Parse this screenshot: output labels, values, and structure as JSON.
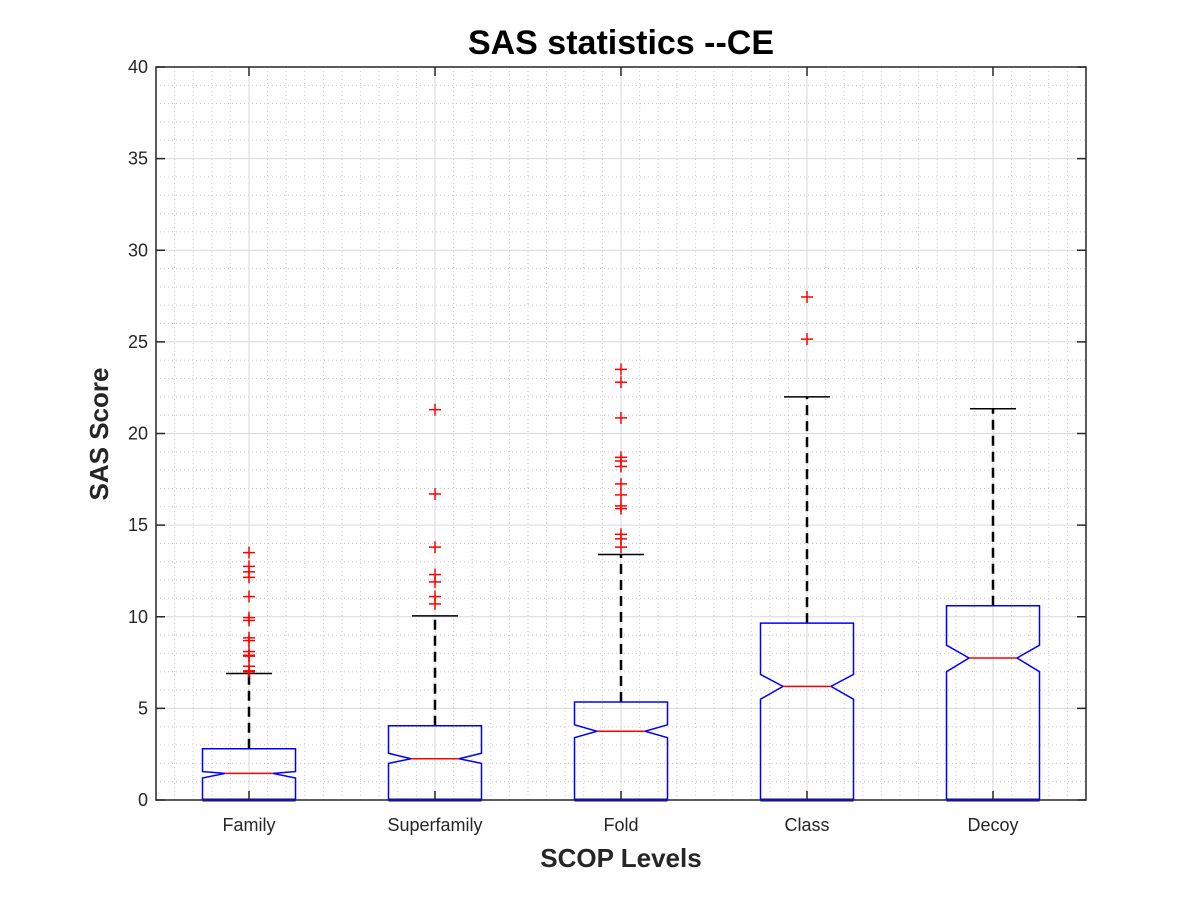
{
  "chart_data": {
    "type": "boxplot",
    "title": "SAS statistics --CE",
    "xlabel": "SCOP Levels",
    "ylabel": "SAS Score",
    "ylim": [
      0,
      40
    ],
    "yticks": [
      "0",
      "5",
      "10",
      "15",
      "20",
      "25",
      "30",
      "35",
      "40"
    ],
    "ytick_values": [
      0,
      5,
      10,
      15,
      20,
      25,
      30,
      35,
      40
    ],
    "grid": true,
    "minor_grid": true,
    "notched": true,
    "categories": [
      "Family",
      "Superfamily",
      "Fold",
      "Class",
      "Decoy"
    ],
    "series": [
      {
        "name": "Family",
        "min": 0,
        "q1": 0,
        "median": 1.45,
        "q3": 2.8,
        "notch_low": 1.2,
        "notch_high": 1.55,
        "whisker_high": 6.9,
        "outliers": [
          13.5,
          12.75,
          12.45,
          12.15,
          11.1,
          9.95,
          9.8,
          8.85,
          8.7,
          8.1,
          7.9,
          7.85,
          7.3,
          7.05,
          7.0
        ]
      },
      {
        "name": "Superfamily",
        "min": 0,
        "q1": 0,
        "median": 2.25,
        "q3": 4.05,
        "notch_low": 2.0,
        "notch_high": 2.55,
        "whisker_high": 10.05,
        "outliers": [
          21.3,
          16.7,
          13.8,
          12.3,
          11.9,
          11.1,
          10.7
        ]
      },
      {
        "name": "Fold",
        "min": 0,
        "q1": 0,
        "median": 3.75,
        "q3": 5.35,
        "notch_low": 3.4,
        "notch_high": 4.1,
        "whisker_high": 13.4,
        "outliers": [
          23.5,
          22.8,
          20.85,
          18.7,
          18.5,
          18.2,
          17.25,
          16.65,
          16.05,
          15.9,
          14.5,
          14.25,
          13.8
        ]
      },
      {
        "name": "Class",
        "min": 0,
        "q1": 0,
        "median": 6.2,
        "q3": 9.65,
        "notch_low": 5.5,
        "notch_high": 6.85,
        "whisker_high": 22.0,
        "outliers": [
          27.45,
          25.15
        ]
      },
      {
        "name": "Decoy",
        "min": 0,
        "q1": 0,
        "median": 7.75,
        "q3": 10.6,
        "notch_low": 7.0,
        "notch_high": 8.45,
        "whisker_high": 21.35,
        "outliers": []
      }
    ],
    "colors": {
      "box": "#0000ff",
      "median": "#ff0000",
      "whisker": "#000000",
      "outlier": "#ff0000",
      "grid": "#d9d9d9"
    }
  }
}
